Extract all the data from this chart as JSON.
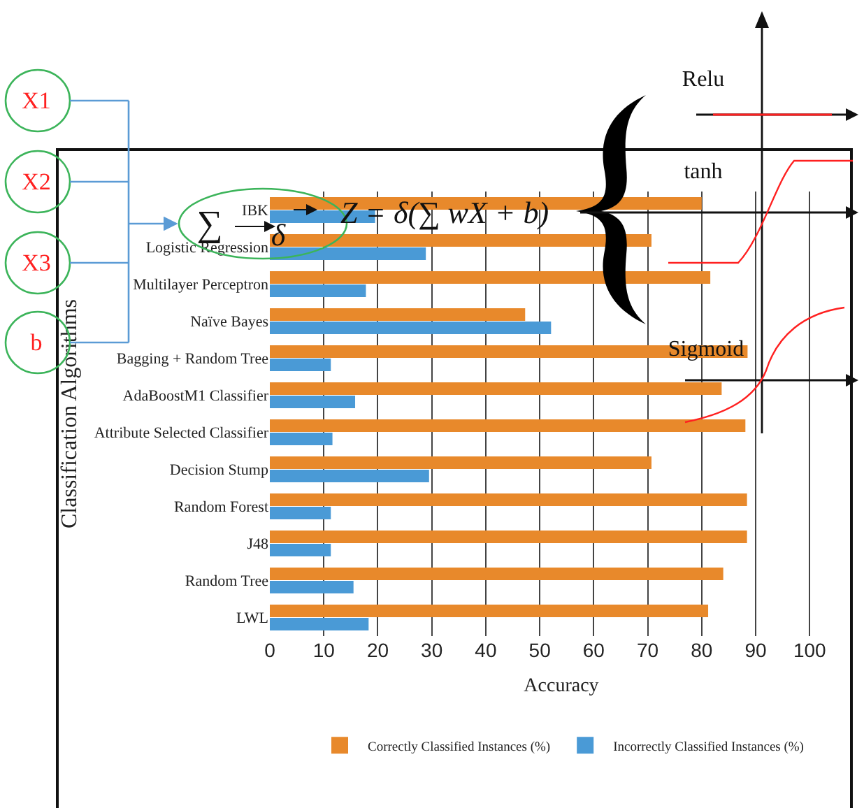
{
  "chart_data": {
    "type": "bar",
    "orientation": "horizontal",
    "xlabel": "Accuracy",
    "ylabel": "Classification Algorithms",
    "categories": [
      "IBK",
      "Logistic Regression",
      "Multilayer Perceptron",
      "Naïve Bayes",
      "Bagging + Random Tree",
      "AdaBoostM1 Classifier",
      "Attribute Selected Classifier",
      "Decision Stump",
      "Random Forest",
      "J48",
      "Random Tree",
      "LWL"
    ],
    "series": [
      {
        "name": "Correctly Classified Instances (%)",
        "color": "#e8892b",
        "values": [
          80,
          70.7,
          81.6,
          47.3,
          88.5,
          83.7,
          88.1,
          70.7,
          88.4,
          88.4,
          84,
          81.2
        ]
      },
      {
        "name": "Incorrectly Classified Instances (%)",
        "color": "#4a9ad6",
        "values": [
          19.5,
          28.9,
          17.8,
          52.1,
          11.3,
          15.8,
          11.6,
          29.5,
          11.3,
          11.3,
          15.5,
          18.3
        ]
      }
    ],
    "xlim": [
      0,
      108
    ],
    "xticks": [
      0,
      10,
      20,
      30,
      40,
      50,
      60,
      70,
      80,
      90,
      100
    ],
    "grid": "x",
    "legend": "bottom",
    "annotations": [
      "X1",
      "X2",
      "X3",
      "b",
      "∑",
      "δ",
      "Z = δ(∑ wX + b)",
      "Relu",
      "tanh",
      "Sigmoid"
    ]
  }
}
